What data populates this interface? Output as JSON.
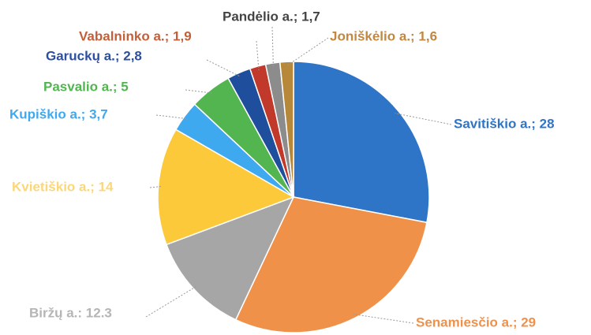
{
  "chart_data": {
    "type": "pie",
    "values": [
      28,
      29,
      12.3,
      14,
      3.7,
      5,
      2.8,
      1.9,
      1.7,
      1.6
    ],
    "value_labels": [
      "Savitiškio a.; 28",
      "Senamiesčio a.; 29",
      "Biržų a.: 12.3",
      "Kvietiškio a.; 14",
      "Kupiškio a.; 3,7",
      "Pasvalio a.; 5",
      "Garuckų a.; 2,8",
      "Vabalninko a.; 1,9",
      "Pandėlio a.; 1,7",
      "Joniškėlio a.; 1,6"
    ],
    "colors": [
      "#2e75c8",
      "#f0914a",
      "#a6a6a6",
      "#fcc93a",
      "#3fa9f0",
      "#52b550",
      "#1f4e9c",
      "#c0392b",
      "#8c8c8c",
      "#b8883a"
    ]
  }
}
